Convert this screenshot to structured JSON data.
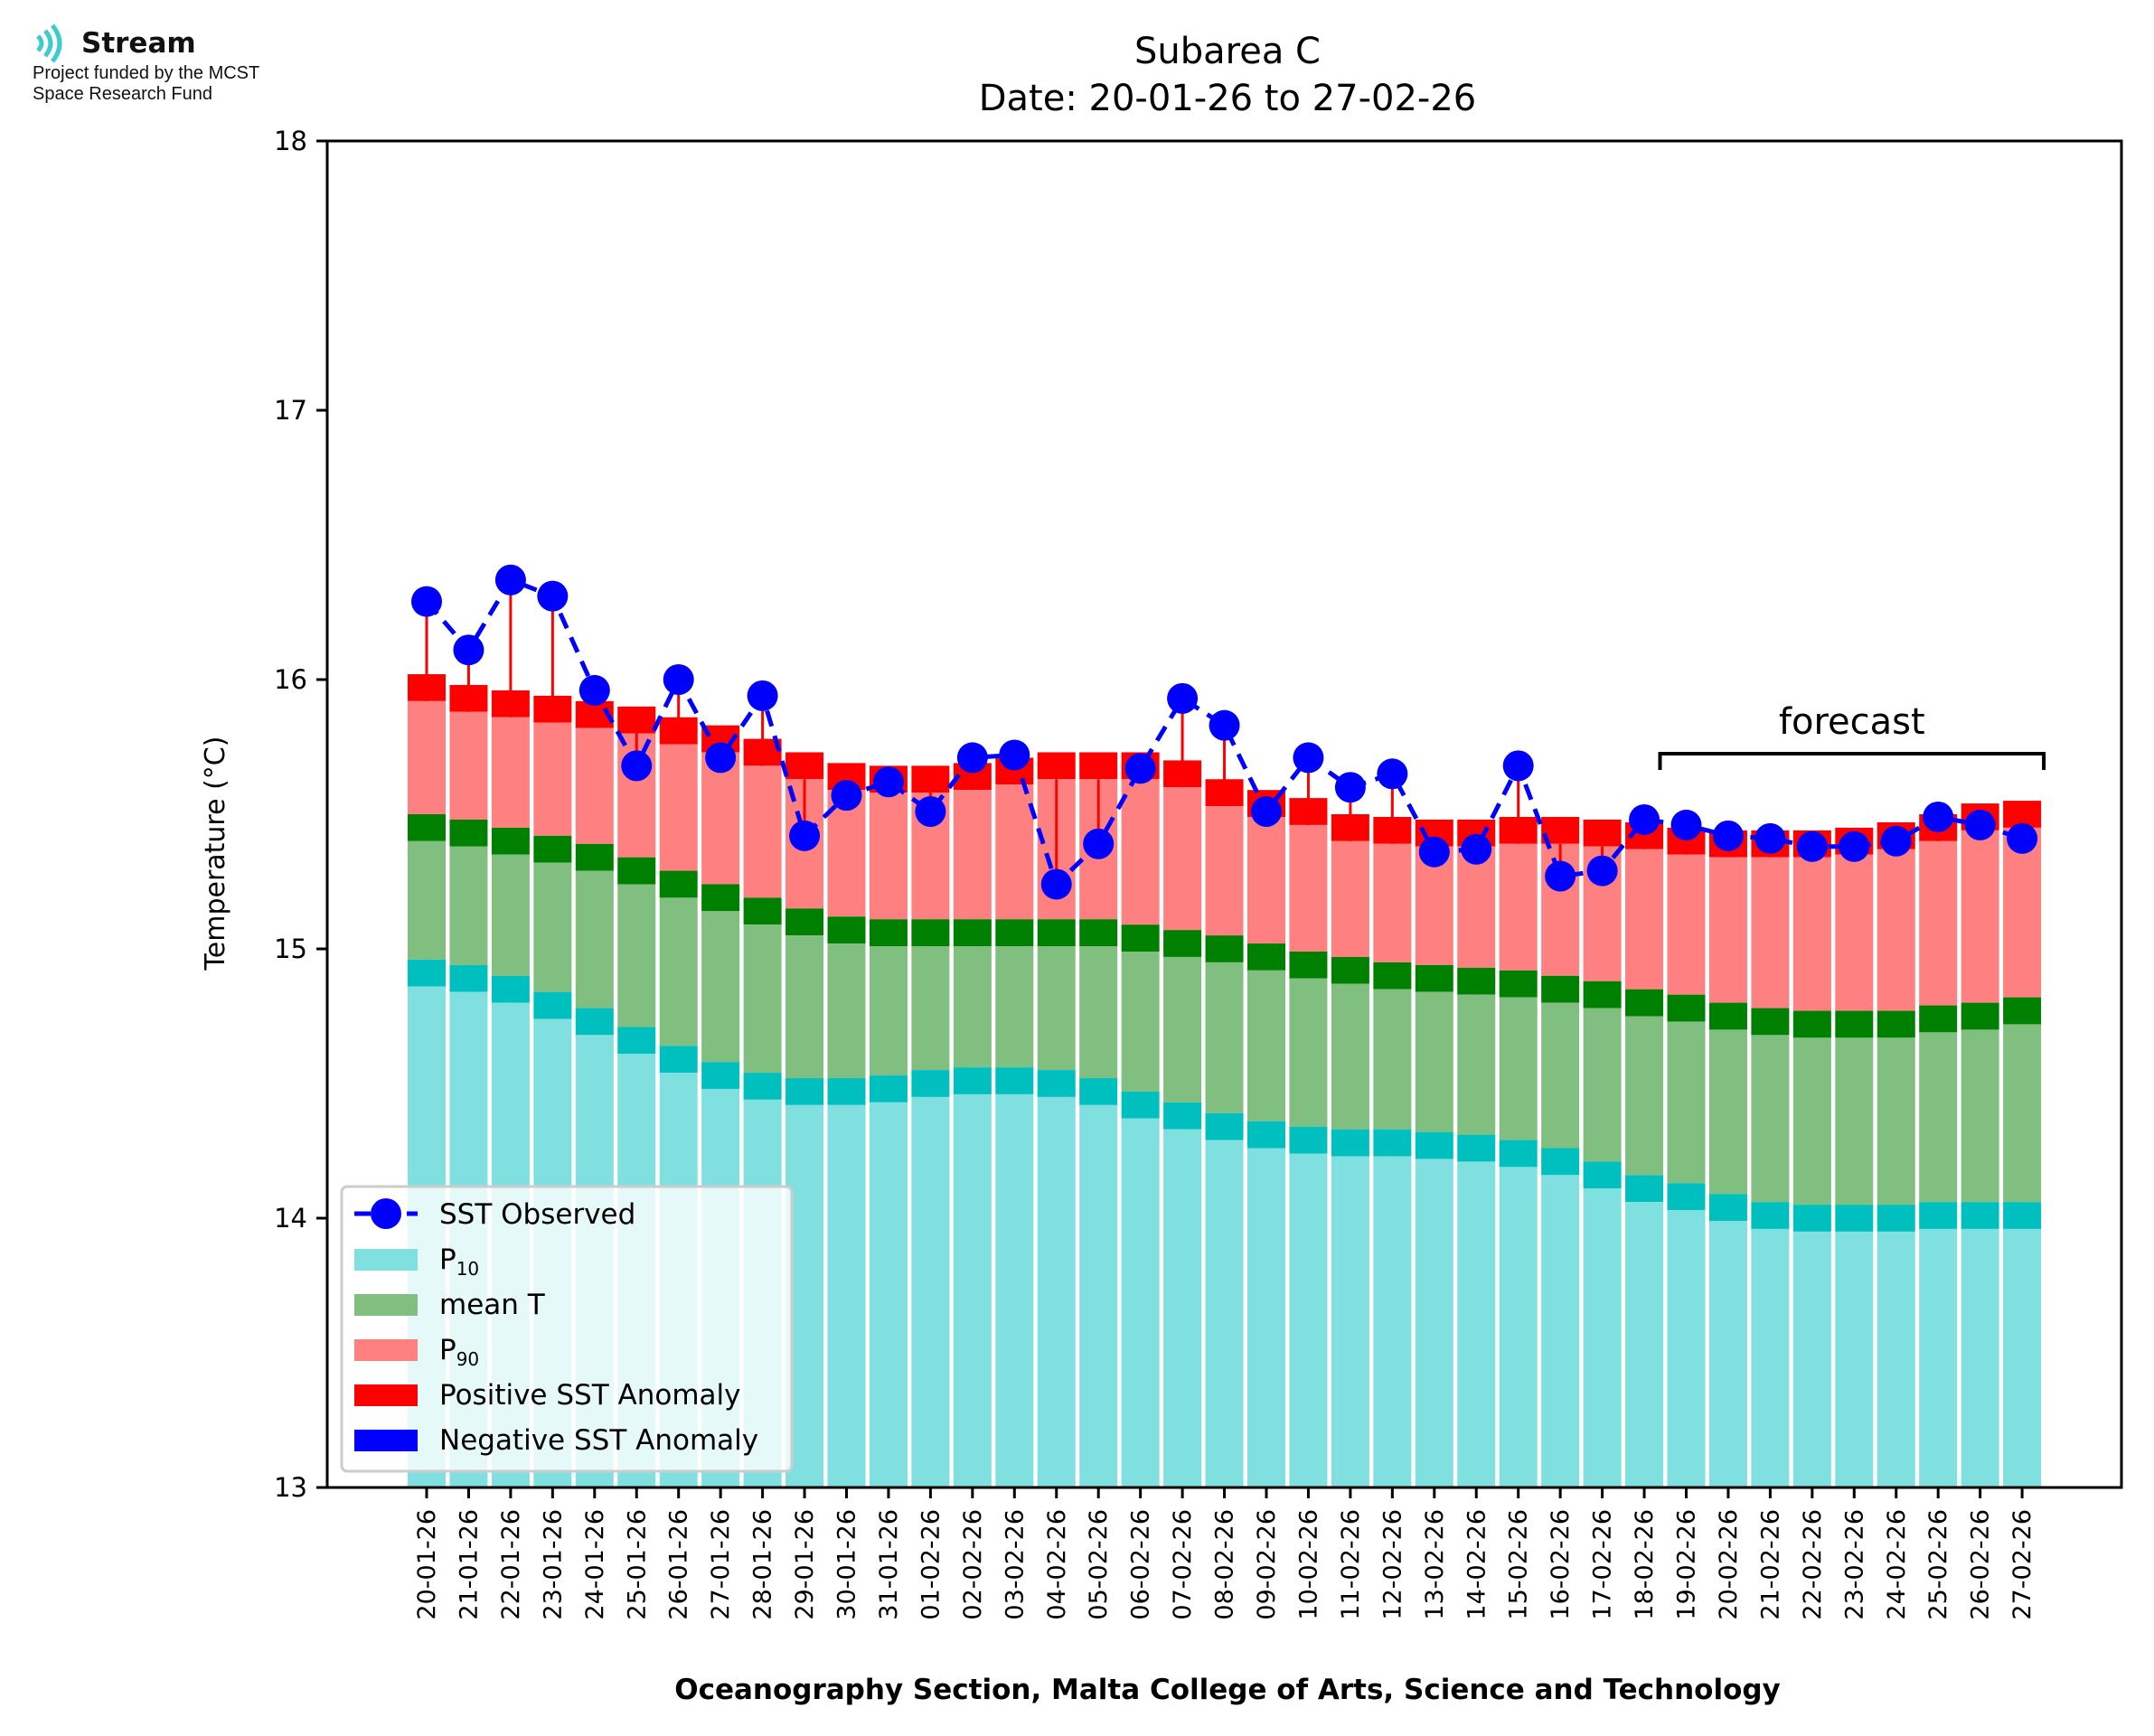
{
  "logo": {
    "name": "Stream",
    "funding_line1": "Project funded by the MCST",
    "funding_line2": "Space Research Fund"
  },
  "colors": {
    "p10": "#80dfdf",
    "p10_cap": "#00bfbf",
    "mean": "#80bf80",
    "mean_cap": "#008000",
    "p90": "#ff8080",
    "p90_cap": "#ff0000",
    "observed": "#0000ff",
    "positive_anomaly": "#ff0000",
    "negative_anomaly": "#0000ff",
    "legend_bg": "#ffffff"
  },
  "chart_data": {
    "type": "bar",
    "title": "Subarea C",
    "subtitle": "Date: 20-01-26 to 27-02-26",
    "xlabel": "Oceanography Section, Malta College of Arts, Science and Technology",
    "ylabel": "Temperature (°C)",
    "ylim": [
      13,
      18
    ],
    "yticks": [
      "13",
      "14",
      "15",
      "16",
      "17",
      "18"
    ],
    "grid": false,
    "legend_position": "lower-left",
    "categories": [
      "20-01-26",
      "21-01-26",
      "22-01-26",
      "23-01-26",
      "24-01-26",
      "25-01-26",
      "26-01-26",
      "27-01-26",
      "28-01-26",
      "29-01-26",
      "30-01-26",
      "31-01-26",
      "01-02-26",
      "02-02-26",
      "03-02-26",
      "04-02-26",
      "05-02-26",
      "06-02-26",
      "07-02-26",
      "08-02-26",
      "09-02-26",
      "10-02-26",
      "11-02-26",
      "12-02-26",
      "13-02-26",
      "14-02-26",
      "15-02-26",
      "16-02-26",
      "17-02-26",
      "18-02-26",
      "19-02-26",
      "20-02-26",
      "21-02-26",
      "22-02-26",
      "23-02-26",
      "24-02-26",
      "25-02-26",
      "26-02-26",
      "27-02-26"
    ],
    "series": [
      {
        "name": "P10",
        "legend_main": "P",
        "legend_sub": "10",
        "values": [
          14.96,
          14.94,
          14.9,
          14.84,
          14.78,
          14.71,
          14.64,
          14.58,
          14.54,
          14.52,
          14.52,
          14.53,
          14.55,
          14.56,
          14.56,
          14.55,
          14.52,
          14.47,
          14.43,
          14.39,
          14.36,
          14.34,
          14.33,
          14.33,
          14.32,
          14.31,
          14.29,
          14.26,
          14.21,
          14.16,
          14.13,
          14.09,
          14.06,
          14.05,
          14.05,
          14.05,
          14.06,
          14.06,
          14.06
        ]
      },
      {
        "name": "mean T",
        "values": [
          15.5,
          15.48,
          15.45,
          15.42,
          15.39,
          15.34,
          15.29,
          15.24,
          15.19,
          15.15,
          15.12,
          15.11,
          15.11,
          15.11,
          15.11,
          15.11,
          15.11,
          15.09,
          15.07,
          15.05,
          15.02,
          14.99,
          14.97,
          14.95,
          14.94,
          14.93,
          14.92,
          14.9,
          14.88,
          14.85,
          14.83,
          14.8,
          14.78,
          14.77,
          14.77,
          14.77,
          14.79,
          14.8,
          14.82
        ]
      },
      {
        "name": "P90",
        "legend_main": "P",
        "legend_sub": "90",
        "values": [
          16.02,
          15.98,
          15.96,
          15.94,
          15.92,
          15.9,
          15.86,
          15.83,
          15.78,
          15.73,
          15.69,
          15.68,
          15.68,
          15.69,
          15.71,
          15.73,
          15.73,
          15.73,
          15.7,
          15.63,
          15.59,
          15.56,
          15.5,
          15.49,
          15.48,
          15.48,
          15.49,
          15.49,
          15.48,
          15.47,
          15.45,
          15.44,
          15.44,
          15.44,
          15.45,
          15.47,
          15.5,
          15.54,
          15.55
        ]
      },
      {
        "name": "SST Observed",
        "values": [
          16.29,
          16.11,
          16.37,
          16.31,
          15.96,
          15.68,
          16.0,
          15.71,
          15.94,
          15.42,
          15.57,
          15.62,
          15.51,
          15.71,
          15.72,
          15.24,
          15.39,
          15.67,
          15.93,
          15.83,
          15.51,
          15.71,
          15.6,
          15.65,
          15.36,
          15.37,
          15.68,
          15.27,
          15.29,
          15.48,
          15.46,
          15.42,
          15.41,
          15.38,
          15.38,
          15.4,
          15.49,
          15.46,
          15.41
        ]
      }
    ],
    "legend": [
      {
        "label": "SST Observed",
        "kind": "line-marker",
        "color_key": "observed"
      },
      {
        "label": "P",
        "sub": "10",
        "kind": "patch",
        "color_key": "p10"
      },
      {
        "label": "mean T",
        "kind": "patch",
        "color_key": "mean"
      },
      {
        "label": "P",
        "sub": "90",
        "kind": "patch",
        "color_key": "p90"
      },
      {
        "label": "Positive SST Anomaly",
        "kind": "patch",
        "color_key": "positive_anomaly"
      },
      {
        "label": "Negative SST Anomaly",
        "kind": "patch",
        "color_key": "negative_anomaly"
      }
    ],
    "annotation": {
      "text": "forecast",
      "from": "19-02-26",
      "to": "27-02-26"
    }
  }
}
